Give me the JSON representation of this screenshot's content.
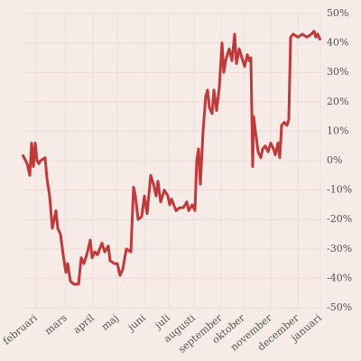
{
  "chart_data": {
    "type": "line",
    "x": [
      0,
      5,
      8,
      10,
      12,
      14,
      16,
      18,
      20,
      25,
      27,
      30,
      33,
      37,
      39,
      42,
      45,
      48,
      50,
      53,
      57,
      62,
      65,
      68,
      72,
      75,
      77,
      80,
      83,
      88,
      91,
      95,
      97,
      102,
      105,
      108,
      111,
      115,
      120,
      123,
      125,
      128,
      132,
      135,
      138,
      142,
      145,
      148,
      150,
      153,
      157,
      161,
      163,
      165,
      170,
      174,
      178,
      182,
      184,
      188,
      191,
      193,
      195,
      197,
      200,
      203,
      205,
      207,
      210,
      212,
      215,
      218,
      221,
      223,
      225,
      229,
      232,
      235,
      237,
      240,
      243,
      246,
      249,
      251,
      253,
      255,
      256,
      258,
      261,
      264,
      266,
      269,
      272,
      275,
      278,
      280,
      283,
      285,
      287,
      290,
      293,
      295,
      297,
      300,
      305,
      310,
      315,
      320,
      323,
      325,
      327,
      330
    ],
    "series": [
      {
        "name": null,
        "color": "#c0393b",
        "values": [
          2,
          -1,
          -5,
          6,
          -2,
          6,
          0,
          -1,
          0,
          1,
          -6,
          -12,
          -23,
          -17,
          -23,
          -25,
          -32,
          -38,
          -35,
          -41,
          -42,
          -42,
          -33,
          -35,
          -31,
          -27,
          -33,
          -31,
          -32,
          -28,
          -31,
          -29,
          -34,
          -35,
          -35,
          -39,
          -37,
          -30,
          -31,
          -9,
          -12,
          -20,
          -19,
          -12,
          -18,
          -5,
          -8,
          -12,
          -7,
          -14,
          -10,
          -12,
          -15,
          -13,
          -17,
          -16,
          -16,
          -14,
          -17,
          -15,
          -17,
          0,
          4,
          -8,
          10,
          22,
          24,
          18,
          16,
          24,
          17,
          25,
          40,
          30,
          34,
          38,
          34,
          43,
          33,
          38,
          35,
          32,
          36,
          34,
          35,
          -2,
          15,
          10,
          3,
          1,
          4,
          5,
          3,
          6,
          4,
          2,
          6,
          1,
          12,
          13,
          12,
          14,
          42,
          43,
          42,
          43,
          42,
          43,
          44,
          42,
          43,
          41
        ]
      }
    ],
    "xlim": [
      0,
      330
    ],
    "xticks": [
      {
        "value": 15,
        "label": "februari"
      },
      {
        "value": 48,
        "label": "mars"
      },
      {
        "value": 78,
        "label": "april"
      },
      {
        "value": 105,
        "label": "maj"
      },
      {
        "value": 135,
        "label": "juni"
      },
      {
        "value": 162,
        "label": "juli"
      },
      {
        "value": 190,
        "label": "augusti"
      },
      {
        "value": 220,
        "label": "september"
      },
      {
        "value": 245,
        "label": "oktober"
      },
      {
        "value": 275,
        "label": "november"
      },
      {
        "value": 305,
        "label": "december"
      },
      {
        "value": 330,
        "label": "januari"
      }
    ],
    "ylim": [
      -50,
      50
    ],
    "yticks": [
      {
        "value": -50,
        "label": "-50%"
      },
      {
        "value": -40,
        "label": "-40%"
      },
      {
        "value": -30,
        "label": "-30%"
      },
      {
        "value": -20,
        "label": "-20%"
      },
      {
        "value": -10,
        "label": "-10%"
      },
      {
        "value": 0,
        "label": "0%"
      },
      {
        "value": 10,
        "label": "10%"
      },
      {
        "value": 20,
        "label": "20%"
      },
      {
        "value": 30,
        "label": "30%"
      },
      {
        "value": 40,
        "label": "40%"
      },
      {
        "value": 50,
        "label": "50%"
      }
    ],
    "grid": true
  }
}
